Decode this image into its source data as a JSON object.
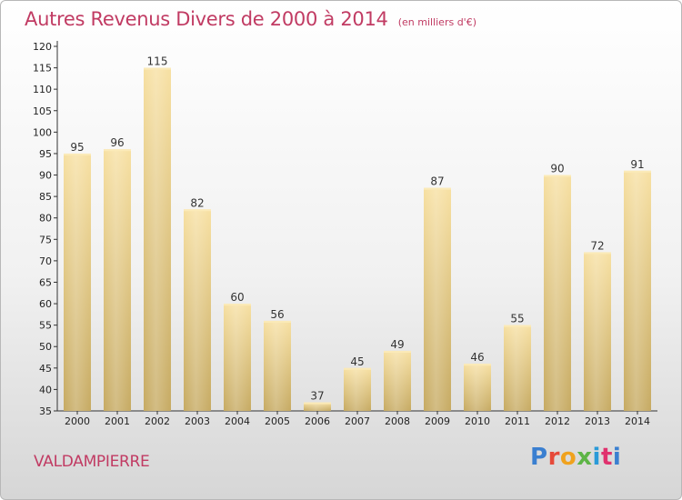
{
  "title": "Autres Revenus Divers de 2000 à 2014",
  "subtitle": "(en milliers d'€)",
  "commune": "VALDAMPIERRE",
  "logo": [
    "P",
    "r",
    "o",
    "x",
    "i",
    "t",
    "i"
  ],
  "colors": {
    "accent": "#c13b63",
    "bar_top": "#f5dc9a",
    "bar_bottom": "#c8ac66",
    "bar_side": "#dcc284"
  },
  "chart_data": {
    "type": "bar",
    "title": "Autres Revenus Divers de 2000 à 2014",
    "subtitle": "(en milliers d'€)",
    "categories": [
      "2000",
      "2001",
      "2002",
      "2003",
      "2004",
      "2005",
      "2006",
      "2007",
      "2008",
      "2009",
      "2010",
      "2011",
      "2012",
      "2013",
      "2014"
    ],
    "values": [
      95,
      96,
      115,
      82,
      60,
      56,
      37,
      45,
      49,
      87,
      46,
      55,
      90,
      72,
      91
    ],
    "ylim": [
      35,
      120
    ],
    "yticks": [
      35,
      40,
      45,
      50,
      55,
      60,
      65,
      70,
      75,
      80,
      85,
      90,
      95,
      100,
      105,
      110,
      115,
      120
    ],
    "grid": false,
    "legend": "none"
  }
}
